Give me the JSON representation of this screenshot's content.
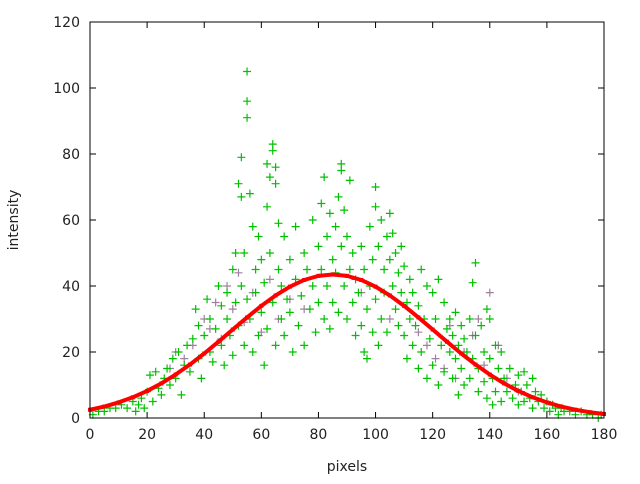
{
  "chart_data": {
    "type": "scatter",
    "title": "",
    "xlabel": "pixels",
    "ylabel": "intensity",
    "xlim": [
      0,
      180
    ],
    "ylim": [
      0,
      120
    ],
    "xticks": [
      0,
      20,
      40,
      60,
      80,
      100,
      120,
      140,
      160,
      180
    ],
    "yticks": [
      0,
      20,
      40,
      60,
      80,
      100,
      120
    ],
    "grid": false,
    "legend": "none",
    "colors": {
      "measured": "#00c000",
      "secondary": "#a080a0",
      "fit": "#ff0000"
    },
    "series": [
      {
        "type": "scatter",
        "marker": "plus",
        "color": "#a080a0",
        "points": [
          [
            36,
            22
          ],
          [
            40,
            30
          ],
          [
            42,
            27
          ],
          [
            44,
            35
          ],
          [
            46,
            24
          ],
          [
            48,
            40
          ],
          [
            50,
            33
          ],
          [
            52,
            44
          ],
          [
            54,
            29
          ],
          [
            57,
            38
          ],
          [
            60,
            26
          ],
          [
            63,
            42
          ],
          [
            66,
            30
          ],
          [
            70,
            36
          ],
          [
            75,
            33
          ],
          [
            95,
            38
          ],
          [
            105,
            30
          ],
          [
            115,
            26
          ],
          [
            118,
            22
          ],
          [
            121,
            18
          ],
          [
            124,
            15
          ],
          [
            126,
            28
          ],
          [
            128,
            12
          ],
          [
            131,
            20
          ],
          [
            134,
            25
          ],
          [
            136,
            30
          ],
          [
            138,
            16
          ],
          [
            140,
            38
          ],
          [
            143,
            22
          ],
          [
            146,
            12
          ],
          [
            150,
            8
          ],
          [
            28,
            15
          ],
          [
            30,
            20
          ],
          [
            33,
            18
          ]
        ]
      },
      {
        "type": "scatter",
        "marker": "plus",
        "color": "#00c000",
        "points": [
          [
            1,
            1
          ],
          [
            3,
            2
          ],
          [
            5,
            2
          ],
          [
            7,
            3
          ],
          [
            9,
            3
          ],
          [
            11,
            4
          ],
          [
            13,
            3
          ],
          [
            15,
            5
          ],
          [
            16,
            2
          ],
          [
            17,
            4
          ],
          [
            18,
            6
          ],
          [
            19,
            3
          ],
          [
            20,
            8
          ],
          [
            21,
            13
          ],
          [
            22,
            5
          ],
          [
            23,
            14
          ],
          [
            24,
            9
          ],
          [
            25,
            7
          ],
          [
            26,
            12
          ],
          [
            27,
            15
          ],
          [
            28,
            10
          ],
          [
            29,
            18
          ],
          [
            30,
            12
          ],
          [
            31,
            20
          ],
          [
            32,
            7
          ],
          [
            33,
            16
          ],
          [
            34,
            22
          ],
          [
            35,
            14
          ],
          [
            36,
            24
          ],
          [
            37,
            33
          ],
          [
            38,
            18
          ],
          [
            38,
            28
          ],
          [
            39,
            12
          ],
          [
            40,
            25
          ],
          [
            41,
            36
          ],
          [
            42,
            20
          ],
          [
            42,
            30
          ],
          [
            43,
            17
          ],
          [
            44,
            27
          ],
          [
            45,
            40
          ],
          [
            46,
            22
          ],
          [
            46,
            34
          ],
          [
            47,
            16
          ],
          [
            48,
            30
          ],
          [
            48,
            38
          ],
          [
            49,
            25
          ],
          [
            50,
            19
          ],
          [
            50,
            45
          ],
          [
            51,
            35
          ],
          [
            51,
            50
          ],
          [
            52,
            28
          ],
          [
            52,
            71
          ],
          [
            53,
            79
          ],
          [
            53,
            40
          ],
          [
            53,
            67
          ],
          [
            54,
            22
          ],
          [
            54,
            50
          ],
          [
            55,
            105
          ],
          [
            55,
            96
          ],
          [
            55,
            91
          ],
          [
            55,
            36
          ],
          [
            56,
            68
          ],
          [
            56,
            30
          ],
          [
            57,
            58
          ],
          [
            57,
            20
          ],
          [
            58,
            45
          ],
          [
            58,
            38
          ],
          [
            59,
            25
          ],
          [
            59,
            55
          ],
          [
            60,
            32
          ],
          [
            60,
            48
          ],
          [
            61,
            16
          ],
          [
            61,
            41
          ],
          [
            62,
            77
          ],
          [
            62,
            64
          ],
          [
            62,
            27
          ],
          [
            63,
            50
          ],
          [
            63,
            73
          ],
          [
            64,
            83
          ],
          [
            64,
            81
          ],
          [
            64,
            35
          ],
          [
            65,
            76
          ],
          [
            65,
            71
          ],
          [
            65,
            22
          ],
          [
            66,
            45
          ],
          [
            66,
            59
          ],
          [
            67,
            30
          ],
          [
            67,
            40
          ],
          [
            68,
            55
          ],
          [
            68,
            25
          ],
          [
            69,
            36
          ],
          [
            70,
            48
          ],
          [
            70,
            32
          ],
          [
            71,
            20
          ],
          [
            72,
            42
          ],
          [
            72,
            58
          ],
          [
            73,
            28
          ],
          [
            74,
            37
          ],
          [
            75,
            50
          ],
          [
            75,
            22
          ],
          [
            76,
            45
          ],
          [
            77,
            33
          ],
          [
            78,
            60
          ],
          [
            78,
            40
          ],
          [
            79,
            26
          ],
          [
            80,
            52
          ],
          [
            80,
            35
          ],
          [
            81,
            65
          ],
          [
            81,
            45
          ],
          [
            82,
            73
          ],
          [
            82,
            30
          ],
          [
            83,
            55
          ],
          [
            83,
            40
          ],
          [
            84,
            62
          ],
          [
            84,
            27
          ],
          [
            85,
            48
          ],
          [
            85,
            35
          ],
          [
            86,
            58
          ],
          [
            86,
            44
          ],
          [
            87,
            67
          ],
          [
            87,
            32
          ],
          [
            88,
            77
          ],
          [
            88,
            75
          ],
          [
            88,
            52
          ],
          [
            89,
            40
          ],
          [
            89,
            63
          ],
          [
            90,
            30
          ],
          [
            90,
            55
          ],
          [
            91,
            72
          ],
          [
            91,
            45
          ],
          [
            92,
            35
          ],
          [
            92,
            50
          ],
          [
            93,
            25
          ],
          [
            93,
            42
          ],
          [
            94,
            38
          ],
          [
            95,
            28
          ],
          [
            95,
            52
          ],
          [
            96,
            20
          ],
          [
            96,
            45
          ],
          [
            97,
            33
          ],
          [
            97,
            18
          ],
          [
            98,
            40
          ],
          [
            98,
            58
          ],
          [
            99,
            26
          ],
          [
            99,
            48
          ],
          [
            100,
            70
          ],
          [
            100,
            64
          ],
          [
            100,
            36
          ],
          [
            101,
            22
          ],
          [
            101,
            52
          ],
          [
            102,
            60
          ],
          [
            102,
            30
          ],
          [
            103,
            45
          ],
          [
            103,
            38
          ],
          [
            104,
            55
          ],
          [
            104,
            26
          ],
          [
            105,
            62
          ],
          [
            105,
            48
          ],
          [
            106,
            40
          ],
          [
            106,
            56
          ],
          [
            107,
            33
          ],
          [
            107,
            50
          ],
          [
            108,
            44
          ],
          [
            108,
            28
          ],
          [
            109,
            38
          ],
          [
            109,
            52
          ],
          [
            110,
            25
          ],
          [
            110,
            46
          ],
          [
            111,
            35
          ],
          [
            111,
            18
          ],
          [
            112,
            42
          ],
          [
            112,
            30
          ],
          [
            113,
            22
          ],
          [
            113,
            38
          ],
          [
            114,
            28
          ],
          [
            115,
            34
          ],
          [
            115,
            15
          ],
          [
            116,
            45
          ],
          [
            116,
            20
          ],
          [
            117,
            30
          ],
          [
            118,
            40
          ],
          [
            118,
            12
          ],
          [
            119,
            24
          ],
          [
            120,
            38
          ],
          [
            120,
            16
          ],
          [
            121,
            30
          ],
          [
            122,
            10
          ],
          [
            122,
            42
          ],
          [
            123,
            22
          ],
          [
            124,
            35
          ],
          [
            124,
            14
          ],
          [
            125,
            27
          ],
          [
            126,
            20
          ],
          [
            126,
            30
          ],
          [
            127,
            12
          ],
          [
            127,
            25
          ],
          [
            128,
            32
          ],
          [
            128,
            18
          ],
          [
            129,
            22
          ],
          [
            129,
            7
          ],
          [
            130,
            28
          ],
          [
            130,
            15
          ],
          [
            131,
            24
          ],
          [
            131,
            10
          ],
          [
            132,
            20
          ],
          [
            133,
            30
          ],
          [
            133,
            12
          ],
          [
            134,
            41
          ],
          [
            134,
            18
          ],
          [
            135,
            47
          ],
          [
            135,
            25
          ],
          [
            136,
            15
          ],
          [
            136,
            8
          ],
          [
            137,
            28
          ],
          [
            138,
            20
          ],
          [
            138,
            11
          ],
          [
            139,
            33
          ],
          [
            139,
            6
          ],
          [
            140,
            30
          ],
          [
            140,
            18
          ],
          [
            141,
            12
          ],
          [
            141,
            4
          ],
          [
            142,
            22
          ],
          [
            142,
            8
          ],
          [
            143,
            15
          ],
          [
            144,
            20
          ],
          [
            144,
            5
          ],
          [
            145,
            12
          ],
          [
            146,
            8
          ],
          [
            147,
            15
          ],
          [
            148,
            6
          ],
          [
            149,
            10
          ],
          [
            150,
            13
          ],
          [
            150,
            4
          ],
          [
            151,
            8
          ],
          [
            152,
            14
          ],
          [
            152,
            5
          ],
          [
            153,
            10
          ],
          [
            154,
            6
          ],
          [
            155,
            12
          ],
          [
            155,
            3
          ],
          [
            156,
            8
          ],
          [
            157,
            5
          ],
          [
            158,
            7
          ],
          [
            159,
            3
          ],
          [
            160,
            5
          ],
          [
            161,
            2
          ],
          [
            162,
            4
          ],
          [
            163,
            3
          ],
          [
            164,
            1
          ],
          [
            165,
            3
          ],
          [
            166,
            2
          ],
          [
            168,
            2
          ],
          [
            170,
            1
          ],
          [
            172,
            2
          ],
          [
            174,
            1
          ],
          [
            176,
            1
          ],
          [
            178,
            0
          ],
          [
            179,
            1
          ]
        ]
      },
      {
        "type": "line",
        "color": "#ff0000",
        "x": [
          0,
          5,
          10,
          15,
          20,
          25,
          30,
          35,
          40,
          45,
          50,
          55,
          60,
          65,
          70,
          75,
          80,
          85,
          90,
          95,
          100,
          105,
          110,
          115,
          120,
          125,
          130,
          135,
          140,
          145,
          150,
          155,
          160,
          165,
          170,
          175,
          180
        ],
        "y": [
          2.5,
          3.47,
          4.72,
          6.28,
          8.2,
          10.49,
          13.17,
          16.2,
          19.55,
          23.12,
          26.81,
          30.48,
          33.98,
          37.14,
          39.8,
          41.82,
          43.07,
          43.5,
          43.07,
          41.82,
          39.8,
          37.14,
          33.98,
          30.48,
          26.81,
          23.12,
          19.55,
          16.2,
          13.17,
          10.49,
          8.2,
          6.28,
          4.72,
          3.47,
          2.5,
          1.76,
          1.21
        ]
      }
    ]
  }
}
